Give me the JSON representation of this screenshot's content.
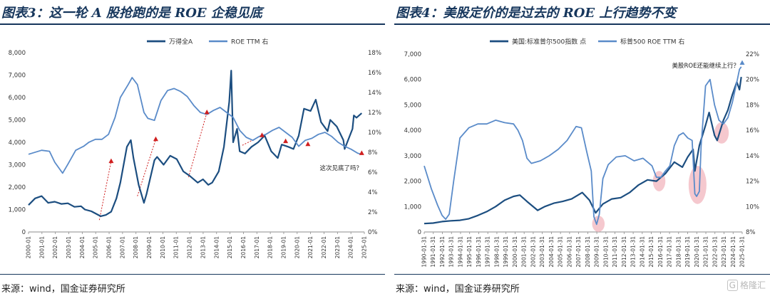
{
  "left": {
    "title": "图表3：这一轮 A 股抢跑的是 ROE 企稳见底",
    "source": "来源：wind，国金证券研究所"
  },
  "right": {
    "title": "图表4：美股定价的是过去的 ROE 上行趋势不变",
    "source": "来源：wind，国金证券研究所"
  },
  "watermark": {
    "icon": "G",
    "text": "格隆汇"
  },
  "colors": {
    "dark_line": "#1c4e80",
    "light_line": "#5a8bc9",
    "red": "#d01f1f",
    "highlight": "#f2b5bd"
  },
  "chart_data": [
    {
      "type": "line",
      "legend": [
        "万得全A",
        "ROE TTM 右"
      ],
      "ylim_left": [
        0,
        8000
      ],
      "yticks_left": [
        "0",
        "1,000",
        "2,000",
        "3,000",
        "4,000",
        "5,000",
        "6,000",
        "7,000",
        "8,000"
      ],
      "ylim_right": [
        0,
        18
      ],
      "yticks_right": [
        "0%",
        "2%",
        "4%",
        "6%",
        "8%",
        "10%",
        "12%",
        "14%",
        "16%",
        "18%"
      ],
      "xlim": [
        2000.0,
        2025.6
      ],
      "x_tick_labels": [
        "2000-01",
        "2001-01",
        "2002-01",
        "2003-01",
        "2004-01",
        "2005-01",
        "2006-01",
        "2007-01",
        "2008-01",
        "2009-01",
        "2010-01",
        "2011-01",
        "2012-01",
        "2013-01",
        "2014-01",
        "2015-01",
        "2016-01",
        "2017-01",
        "2018-01",
        "2019-01",
        "2020-01",
        "2021-01",
        "2022-01",
        "2023-01",
        "2024-01",
        "2025-01"
      ],
      "annotation": "这次见底了吗？",
      "series": [
        {
          "name": "万得全A",
          "axis": "left",
          "color": "#1c4e80",
          "width": 2.2,
          "x": [
            2000.0,
            2000.5,
            2001.0,
            2001.5,
            2002.0,
            2002.5,
            2003.0,
            2003.5,
            2004.0,
            2004.3,
            2004.8,
            2005.5,
            2005.9,
            2006.3,
            2006.7,
            2007.0,
            2007.5,
            2007.8,
            2008.0,
            2008.4,
            2008.8,
            2009.0,
            2009.6,
            2009.8,
            2010.3,
            2010.8,
            2011.3,
            2011.8,
            2012.3,
            2012.9,
            2013.3,
            2013.7,
            2014.0,
            2014.5,
            2014.9,
            2015.3,
            2015.45,
            2015.6,
            2015.9,
            2016.1,
            2016.5,
            2017.0,
            2017.5,
            2018.0,
            2018.5,
            2019.0,
            2019.3,
            2019.8,
            2020.2,
            2020.6,
            2021.0,
            2021.5,
            2021.9,
            2022.3,
            2022.8,
            2023.0,
            2023.5,
            2024.0,
            2024.1,
            2024.7,
            2024.8,
            2025.0,
            2025.4
          ],
          "y": [
            1200,
            1500,
            1600,
            1300,
            1350,
            1250,
            1280,
            1120,
            1150,
            1000,
            920,
            700,
            760,
            900,
            1500,
            2200,
            3800,
            4100,
            3300,
            2100,
            1300,
            1700,
            3200,
            3350,
            3000,
            3400,
            3250,
            2700,
            2500,
            2200,
            2350,
            2100,
            2200,
            2700,
            3800,
            5800,
            7200,
            4000,
            4600,
            3600,
            3500,
            3800,
            4000,
            4300,
            3600,
            3300,
            3900,
            3800,
            3700,
            4300,
            5500,
            5400,
            5900,
            4900,
            4500,
            5000,
            4700,
            4100,
            3700,
            4600,
            5200,
            5100,
            5300
          ]
        },
        {
          "name": "ROE TTM 右",
          "axis": "right",
          "color": "#5a8bc9",
          "width": 1.8,
          "x": [
            2000.0,
            2001.0,
            2001.6,
            2002.0,
            2002.6,
            2003.0,
            2003.6,
            2004.2,
            2004.6,
            2005.1,
            2005.6,
            2006.1,
            2006.6,
            2007.0,
            2007.6,
            2007.9,
            2008.3,
            2008.8,
            2009.1,
            2009.6,
            2010.1,
            2010.6,
            2011.1,
            2011.6,
            2012.1,
            2012.6,
            2013.1,
            2013.6,
            2014.1,
            2014.6,
            2015.1,
            2015.6,
            2016.1,
            2016.6,
            2017.1,
            2017.6,
            2018.1,
            2018.6,
            2019.1,
            2019.6,
            2020.1,
            2020.6,
            2021.1,
            2021.6,
            2022.1,
            2022.6,
            2023.1,
            2023.6,
            2024.1,
            2024.6,
            2025.1,
            2025.4
          ],
          "y": [
            7.8,
            8.2,
            8.1,
            7.0,
            5.9,
            6.8,
            8.2,
            8.6,
            9.0,
            9.3,
            9.3,
            9.8,
            11.5,
            13.5,
            14.8,
            15.5,
            14.8,
            12.0,
            11.4,
            11.2,
            13.2,
            14.2,
            14.4,
            14.1,
            13.6,
            12.7,
            12.0,
            11.8,
            12.2,
            12.5,
            12.0,
            11.5,
            10.2,
            9.5,
            9.2,
            9.6,
            9.8,
            10.2,
            10.5,
            10.0,
            9.5,
            8.6,
            9.2,
            9.4,
            9.8,
            10.0,
            9.6,
            9.0,
            8.6,
            8.3,
            7.9,
            7.8
          ]
        }
      ],
      "markers": [
        {
          "x": 2006.3,
          "y": 7.1
        },
        {
          "x": 2009.7,
          "y": 9.3
        },
        {
          "x": 2013.6,
          "y": 12.0
        },
        {
          "x": 2017.8,
          "y": 9.7
        },
        {
          "x": 2019.6,
          "y": 9.1
        },
        {
          "x": 2021.3,
          "y": 8.8
        },
        {
          "x": 2025.4,
          "y": 7.9
        }
      ],
      "arrows": [
        {
          "x0": 2005.4,
          "y0": 1.2,
          "x1": 2006.3,
          "y1": 7.1
        },
        {
          "x0": 2008.3,
          "y0": 3.6,
          "x1": 2009.7,
          "y1": 9.3
        },
        {
          "x0": 2012.2,
          "y0": 5.5,
          "x1": 2013.6,
          "y1": 12.0
        },
        {
          "x0": 2016.3,
          "y0": 8.7,
          "x1": 2017.8,
          "y1": 9.7
        }
      ]
    },
    {
      "type": "line",
      "legend": [
        "美国:标准普尔500指数 点",
        "标普500 ROE TTM 右"
      ],
      "ylim_left": [
        0,
        7000
      ],
      "yticks_left": [
        "0",
        "1,000",
        "2,000",
        "3,000",
        "4,000",
        "5,000",
        "6,000",
        "7,000"
      ],
      "ylim_right": [
        8,
        22
      ],
      "yticks_right": [
        "8%",
        "10%",
        "12%",
        "14%",
        "16%",
        "18%",
        "20%",
        "22%"
      ],
      "xlim": [
        1990.0,
        2025.6
      ],
      "x_tick_labels": [
        "1990-01-31",
        "1991-01-31",
        "1992-01-31",
        "1993-01-31",
        "1994-01-31",
        "1995-01-31",
        "1996-01-31",
        "1997-01-31",
        "1998-01-31",
        "1999-01-31",
        "2000-01-31",
        "2001-01-31",
        "2002-01-31",
        "2003-01-31",
        "2004-01-31",
        "2005-01-31",
        "2006-01-31",
        "2007-01-31",
        "2008-01-31",
        "2009-01-31",
        "2010-01-31",
        "2011-01-31",
        "2012-01-31",
        "2013-01-31",
        "2014-01-31",
        "2015-01-31",
        "2016-01-31",
        "2017-01-31",
        "2018-01-31",
        "2019-01-31",
        "2020-01-31",
        "2021-01-31",
        "2022-01-31",
        "2023-01-31",
        "2024-01-31",
        "2025-01-31"
      ],
      "annotation": "美股ROE还能继续上行？",
      "series": [
        {
          "name": "美国:标准普尔500指数 点",
          "axis": "left",
          "color": "#1c4e80",
          "width": 2.2,
          "x": [
            1990.0,
            1991.0,
            1992.0,
            1993.0,
            1994.0,
            1995.0,
            1996.0,
            1997.0,
            1998.0,
            1999.0,
            2000.0,
            2000.7,
            2001.5,
            2002.7,
            2003.5,
            2004.5,
            2005.5,
            2006.5,
            2007.7,
            2008.5,
            2009.2,
            2010.0,
            2011.0,
            2012.0,
            2013.0,
            2014.0,
            2015.0,
            2016.0,
            2017.0,
            2018.0,
            2018.9,
            2019.5,
            2020.1,
            2020.3,
            2020.8,
            2021.5,
            2021.9,
            2022.5,
            2022.8,
            2023.5,
            2024.0,
            2024.5,
            2025.0,
            2025.3,
            2025.5
          ],
          "y": [
            330,
            350,
            410,
            440,
            460,
            520,
            650,
            800,
            1000,
            1250,
            1400,
            1450,
            1200,
            850,
            1000,
            1130,
            1200,
            1300,
            1550,
            1250,
            750,
            1100,
            1300,
            1350,
            1550,
            1850,
            2050,
            2000,
            2300,
            2750,
            2550,
            2950,
            3250,
            2400,
            3400,
            4200,
            4700,
            3800,
            3600,
            4400,
            4800,
            5400,
            5900,
            5600,
            6100
          ]
        },
        {
          "name": "标普500 ROE TTM 右",
          "axis": "right",
          "color": "#5a8bc9",
          "width": 1.8,
          "x": [
            1990.0,
            1990.8,
            1991.5,
            1992.0,
            1992.4,
            1992.8,
            1993.3,
            1994.0,
            1995.0,
            1996.0,
            1997.0,
            1998.0,
            1999.0,
            2000.0,
            2000.5,
            2001.0,
            2001.5,
            2002.0,
            2003.0,
            2004.0,
            2005.0,
            2006.0,
            2007.0,
            2007.6,
            2008.2,
            2008.7,
            2009.0,
            2009.3,
            2009.6,
            2010.0,
            2010.6,
            2011.5,
            2012.5,
            2013.5,
            2014.5,
            2015.5,
            2016.0,
            2016.5,
            2017.0,
            2017.5,
            2018.0,
            2018.5,
            2019.0,
            2019.5,
            2020.0,
            2020.3,
            2020.5,
            2020.8,
            2021.0,
            2021.5,
            2022.0,
            2022.5,
            2023.0,
            2023.5,
            2024.0,
            2024.5,
            2025.0,
            2025.3,
            2025.5
          ],
          "y": [
            13.2,
            11.4,
            10.1,
            9.3,
            9.0,
            9.4,
            12.0,
            15.4,
            16.2,
            16.5,
            16.5,
            16.8,
            16.6,
            16.5,
            16.0,
            15.2,
            13.8,
            13.4,
            13.6,
            14.0,
            14.5,
            15.2,
            16.3,
            16.2,
            14.3,
            12.8,
            9.2,
            8.6,
            9.4,
            12.2,
            13.3,
            13.9,
            14.0,
            13.6,
            13.8,
            13.2,
            12.3,
            12.3,
            12.8,
            13.2,
            14.8,
            15.6,
            15.8,
            15.4,
            15.2,
            11.0,
            10.8,
            11.2,
            14.8,
            19.5,
            20.0,
            18.0,
            16.8,
            16.5,
            17.0,
            18.2,
            19.8,
            20.8,
            21.0
          ]
        }
      ],
      "markers": [
        {
          "x": 2025.6,
          "y": 21.3
        }
      ],
      "highlights": [
        {
          "cx": 2009.5,
          "cy": 320,
          "rx": 0.7,
          "ry": 320
        },
        {
          "cx": 2016.3,
          "cy": 2000,
          "rx": 0.7,
          "ry": 400
        },
        {
          "cx": 2020.6,
          "cy": 1850,
          "rx": 1.0,
          "ry": 750
        },
        {
          "cx": 2023.3,
          "cy": 3900,
          "rx": 0.8,
          "ry": 420
        }
      ]
    }
  ]
}
